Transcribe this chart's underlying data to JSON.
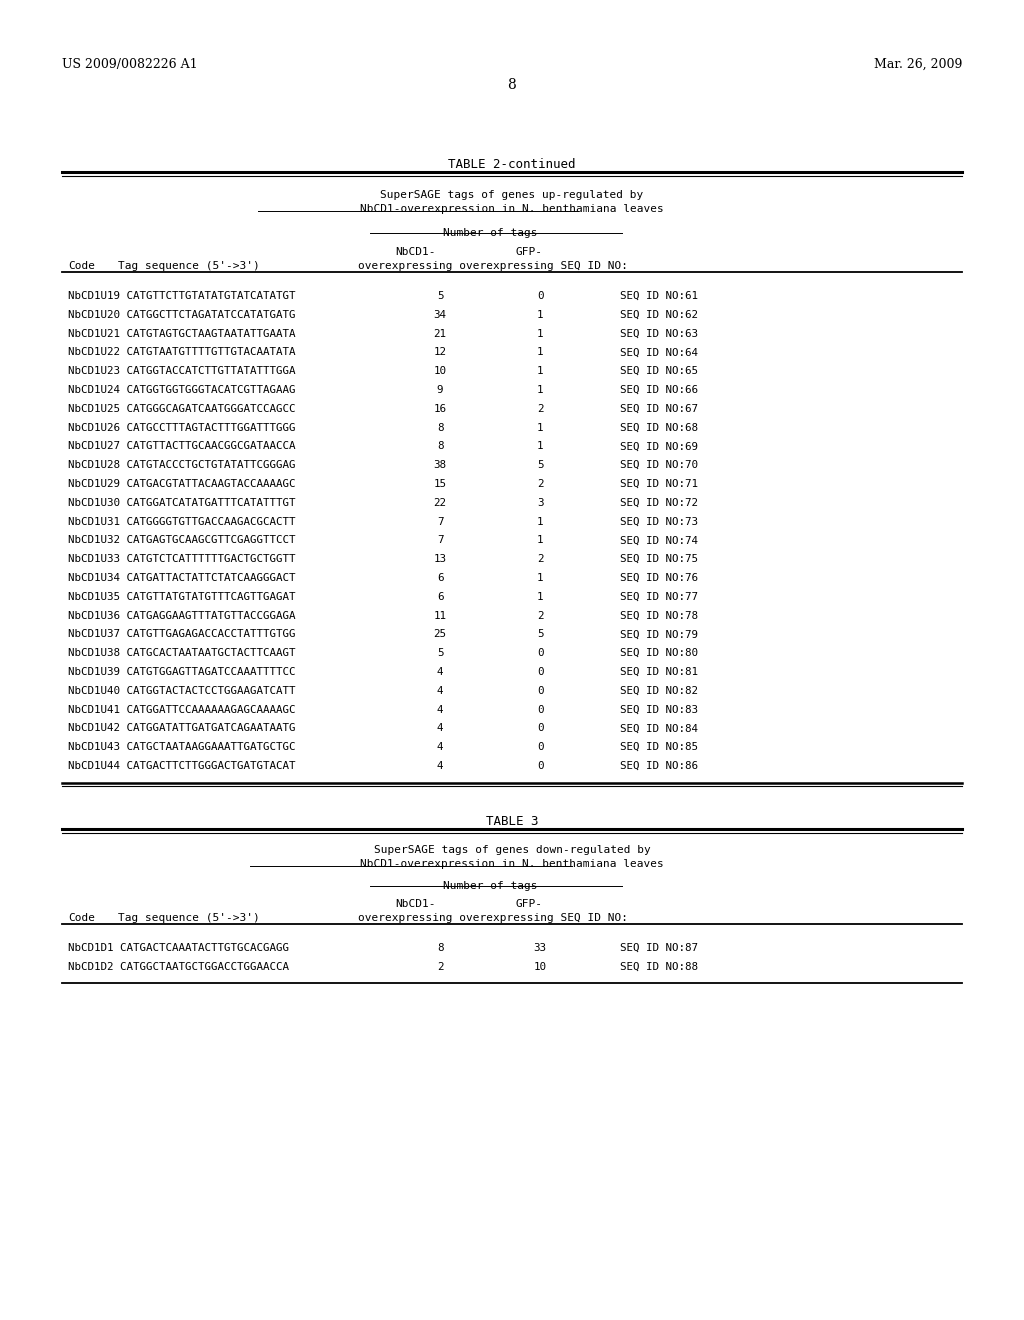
{
  "header_left": "US 2009/0082226 A1",
  "header_right": "Mar. 26, 2009",
  "page_number": "8",
  "table2_title": "TABLE 2-continued",
  "table2_subtitle1": "SuperSAGE tags of genes up-regulated by",
  "table2_subtitle2": "NbCD1-overexpression in N. benthamiana leaves",
  "table2_col_header1": "Number of tags",
  "table2_col_header2": "NbCD1-",
  "table2_col_header3": "GFP-",
  "table2_col_header4": "overexpressing overexpressing SEQ ID NO:",
  "table2_col_code": "Code",
  "table2_col_tag": "Tag sequence (5'->3')",
  "table2_rows": [
    [
      "NbCD1U19",
      "CATGTTCTTGTATATGTATCATATGT",
      "5",
      "0",
      "SEQ ID NO:61"
    ],
    [
      "NbCD1U20",
      "CATGGCTTCTAGATATCCATATGATG",
      "34",
      "1",
      "SEQ ID NO:62"
    ],
    [
      "NbCD1U21",
      "CATGTAGTGCTAAGTAATATTGAATA",
      "21",
      "1",
      "SEQ ID NO:63"
    ],
    [
      "NbCD1U22",
      "CATGTAATGTTTTGTTGTACAATATA",
      "12",
      "1",
      "SEQ ID NO:64"
    ],
    [
      "NbCD1U23",
      "CATGGTACCATCTTGTTATATTTGGA",
      "10",
      "1",
      "SEQ ID NO:65"
    ],
    [
      "NbCD1U24",
      "CATGGTGGTGGGTACATCGTTAGAAG",
      "9",
      "1",
      "SEQ ID NO:66"
    ],
    [
      "NbCD1U25",
      "CATGGGCAGATCAATGGGATCCAGCC",
      "16",
      "2",
      "SEQ ID NO:67"
    ],
    [
      "NbCD1U26",
      "CATGCCTTTAGTACTTTGGATTTGGG",
      "8",
      "1",
      "SEQ ID NO:68"
    ],
    [
      "NbCD1U27",
      "CATGTTACTTGCAACGGCGATAACCA",
      "8",
      "1",
      "SEQ ID NO:69"
    ],
    [
      "NbCD1U28",
      "CATGTACCCTGCTGTATATTCGGGAG",
      "38",
      "5",
      "SEQ ID NO:70"
    ],
    [
      "NbCD1U29",
      "CATGACGTATTACAAGTACCAAAAGC",
      "15",
      "2",
      "SEQ ID NO:71"
    ],
    [
      "NbCD1U30",
      "CATGGATCATATGATTTCATATTTGT",
      "22",
      "3",
      "SEQ ID NO:72"
    ],
    [
      "NbCD1U31",
      "CATGGGGTGTTGACCAAGACGCACTT",
      "7",
      "1",
      "SEQ ID NO:73"
    ],
    [
      "NbCD1U32",
      "CATGAGTGCAAGCGTTCGAGGTTCCT",
      "7",
      "1",
      "SEQ ID NO:74"
    ],
    [
      "NbCD1U33",
      "CATGTCTCATTTTTTGACTGCTGGTT",
      "13",
      "2",
      "SEQ ID NO:75"
    ],
    [
      "NbCD1U34",
      "CATGATTACTATTCTATCAAGGGACT",
      "6",
      "1",
      "SEQ ID NO:76"
    ],
    [
      "NbCD1U35",
      "CATGTTATGTATGTTTCAGTTGAGAT",
      "6",
      "1",
      "SEQ ID NO:77"
    ],
    [
      "NbCD1U36",
      "CATGAGGAAGTTTATGTTACCGGAGA",
      "11",
      "2",
      "SEQ ID NO:78"
    ],
    [
      "NbCD1U37",
      "CATGTTGAGAGACCACCTATTTGTGG",
      "25",
      "5",
      "SEQ ID NO:79"
    ],
    [
      "NbCD1U38",
      "CATGCACTAATAATGCTACTTCAAGT",
      "5",
      "0",
      "SEQ ID NO:80"
    ],
    [
      "NbCD1U39",
      "CATGTGGAGTTAGATCCAAATTTTCC",
      "4",
      "0",
      "SEQ ID NO:81"
    ],
    [
      "NbCD1U40",
      "CATGGTACTACTCCTGGAAGATCATT",
      "4",
      "0",
      "SEQ ID NO:82"
    ],
    [
      "NbCD1U41",
      "CATGGATTCCAAAAAAGAGCAAAAGC",
      "4",
      "0",
      "SEQ ID NO:83"
    ],
    [
      "NbCD1U42",
      "CATGGATATTGATGATCAGAATAATG",
      "4",
      "0",
      "SEQ ID NO:84"
    ],
    [
      "NbCD1U43",
      "CATGCTAATAAGGAAATTGATGCTGC",
      "4",
      "0",
      "SEQ ID NO:85"
    ],
    [
      "NbCD1U44",
      "CATGACTTCTTGGGACTGATGTACAT",
      "4",
      "0",
      "SEQ ID NO:86"
    ]
  ],
  "table3_title": "TABLE 3",
  "table3_subtitle1": "SuperSAGE tags of genes down-regulated by",
  "table3_subtitle2": "NbCD1-overexpression in N. benthamiana leaves",
  "table3_col_header1": "Number of tags",
  "table3_col_header2": "NbCD1-",
  "table3_col_header3": "GFP-",
  "table3_col_header4": "overexpressing overexpressing SEQ ID NO:",
  "table3_col_code": "Code",
  "table3_col_tag": "Tag sequence (5'->3')",
  "table3_rows": [
    [
      "NbCD1D1",
      "CATGACTCAAATACTTGTGCACGAGG",
      "8",
      "33",
      "SEQ ID NO:87"
    ],
    [
      "NbCD1D2",
      "CATGGCTAATGCTGGACCTGGAACCA",
      "2",
      "10",
      "SEQ ID NO:88"
    ]
  ],
  "bg_color": "#ffffff",
  "text_color": "#000000"
}
